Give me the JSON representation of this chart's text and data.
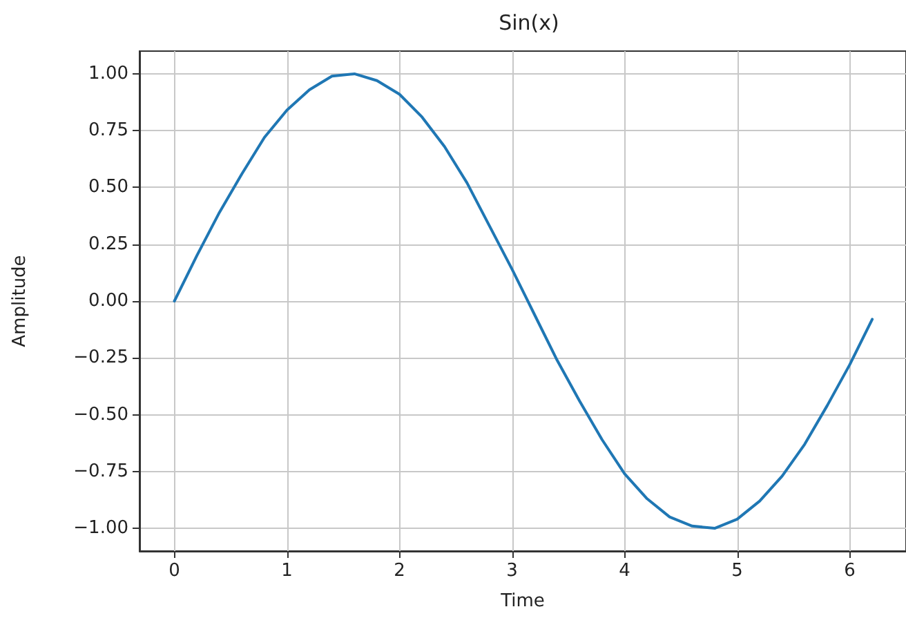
{
  "chart_data": {
    "type": "line",
    "title": "Sin(x)",
    "xlabel": "Time",
    "ylabel": "Amplitude",
    "x": [
      0,
      0.2,
      0.4,
      0.6,
      0.8,
      1.0,
      1.2,
      1.4,
      1.6,
      1.8,
      2.0,
      2.2,
      2.4,
      2.6,
      2.8,
      3.0,
      3.2,
      3.4,
      3.6,
      3.8,
      4.0,
      4.2,
      4.4,
      4.6,
      4.8,
      5.0,
      5.2,
      5.4,
      5.6,
      5.8,
      6.0,
      6.2
    ],
    "series": [
      {
        "color": "#1f77b4",
        "values": [
          0,
          0.2,
          0.39,
          0.56,
          0.72,
          0.84,
          0.93,
          0.99,
          1.0,
          0.97,
          0.91,
          0.81,
          0.68,
          0.52,
          0.33,
          0.14,
          -0.06,
          -0.26,
          -0.44,
          -0.61,
          -0.76,
          -0.87,
          -0.95,
          -0.99,
          -1.0,
          -0.96,
          -0.88,
          -0.77,
          -0.63,
          -0.46,
          -0.28,
          -0.08
        ]
      }
    ],
    "xlim": [
      -0.31,
      6.5
    ],
    "xticks": [
      0,
      1,
      2,
      3,
      4,
      5,
      6
    ],
    "ylim": [
      -1.1,
      1.1
    ],
    "yticks": [
      {
        "value": -1,
        "label": "−1.00"
      },
      {
        "value": -0.75,
        "label": "−0.75"
      },
      {
        "value": -0.5,
        "label": "−0.50"
      },
      {
        "value": -0.25,
        "label": "−0.25"
      },
      {
        "value": 0,
        "label": "0.00"
      },
      {
        "value": 0.25,
        "label": "0.25"
      },
      {
        "value": 0.5,
        "label": "0.50"
      },
      {
        "value": 0.75,
        "label": "0.75"
      },
      {
        "value": 1,
        "label": "1.00"
      }
    ],
    "grid": true,
    "marker": "none",
    "line_style": "solid"
  }
}
